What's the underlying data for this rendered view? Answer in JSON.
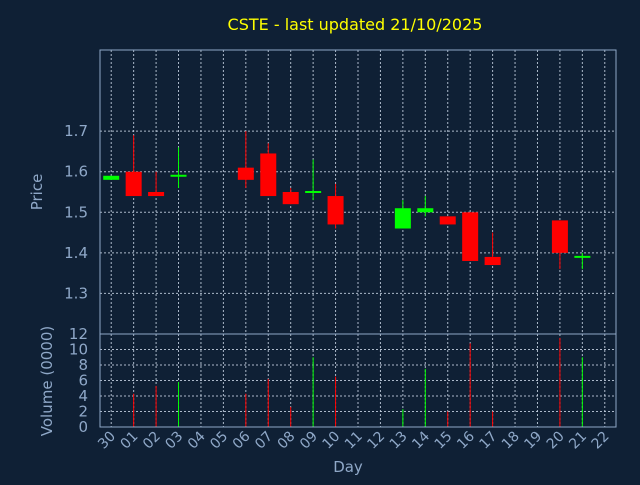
{
  "chart_data": {
    "type": "candlestick",
    "title": "CSTE - last updated 21/10/2025",
    "xlabel": "Day",
    "price_axis": {
      "ylabel": "Price",
      "ylim": [
        1.2,
        1.9
      ],
      "ticks": [
        1.3,
        1.4,
        1.5,
        1.6,
        1.7
      ]
    },
    "volume_axis": {
      "ylabel": "Volume (0000)",
      "ylim": [
        0,
        12
      ],
      "ticks": [
        0,
        2,
        4,
        6,
        8,
        10,
        12
      ]
    },
    "grid": true,
    "x_ticks": [
      "30",
      "01",
      "02",
      "03",
      "04",
      "05",
      "06",
      "07",
      "08",
      "09",
      "10",
      "11",
      "12",
      "13",
      "14",
      "15",
      "16",
      "17",
      "18",
      "19",
      "20",
      "21",
      "22"
    ],
    "up_color": "#00ff00",
    "down_color": "#ff0000",
    "candles": [
      {
        "day": "30",
        "open": 1.58,
        "high": 1.59,
        "low": 1.58,
        "close": 1.59,
        "volume": 0
      },
      {
        "day": "01",
        "open": 1.6,
        "high": 1.69,
        "low": 1.54,
        "close": 1.54,
        "volume": 4.3
      },
      {
        "day": "02",
        "open": 1.55,
        "high": 1.6,
        "low": 1.54,
        "close": 1.54,
        "volume": 5.3
      },
      {
        "day": "03",
        "open": 1.59,
        "high": 1.66,
        "low": 1.56,
        "close": 1.59,
        "volume": 5.8
      },
      {
        "day": "06",
        "open": 1.61,
        "high": 1.7,
        "low": 1.56,
        "close": 1.58,
        "volume": 4.3
      },
      {
        "day": "07",
        "open": 1.645,
        "high": 1.67,
        "low": 1.54,
        "close": 1.54,
        "volume": 6.2
      },
      {
        "day": "08",
        "open": 1.55,
        "high": 1.56,
        "low": 1.52,
        "close": 1.52,
        "volume": 2.6
      },
      {
        "day": "09",
        "open": 1.55,
        "high": 1.63,
        "low": 1.53,
        "close": 1.55,
        "volume": 9.0
      },
      {
        "day": "10",
        "open": 1.54,
        "high": 1.57,
        "low": 1.46,
        "close": 1.47,
        "volume": 6.5
      },
      {
        "day": "13",
        "open": 1.46,
        "high": 1.53,
        "low": 1.46,
        "close": 1.51,
        "volume": 2.3
      },
      {
        "day": "14",
        "open": 1.5,
        "high": 1.54,
        "low": 1.49,
        "close": 1.51,
        "volume": 7.5
      },
      {
        "day": "15",
        "open": 1.49,
        "high": 1.49,
        "low": 1.47,
        "close": 1.47,
        "volume": 2.0
      },
      {
        "day": "16",
        "open": 1.5,
        "high": 1.5,
        "low": 1.38,
        "close": 1.38,
        "volume": 10.8
      },
      {
        "day": "17",
        "open": 1.39,
        "high": 1.45,
        "low": 1.37,
        "close": 1.37,
        "volume": 2.0
      },
      {
        "day": "20",
        "open": 1.48,
        "high": 1.48,
        "low": 1.36,
        "close": 1.4,
        "volume": 11.5
      },
      {
        "day": "21",
        "open": 1.39,
        "high": 1.4,
        "low": 1.36,
        "close": 1.39,
        "volume": 9.0
      }
    ]
  }
}
